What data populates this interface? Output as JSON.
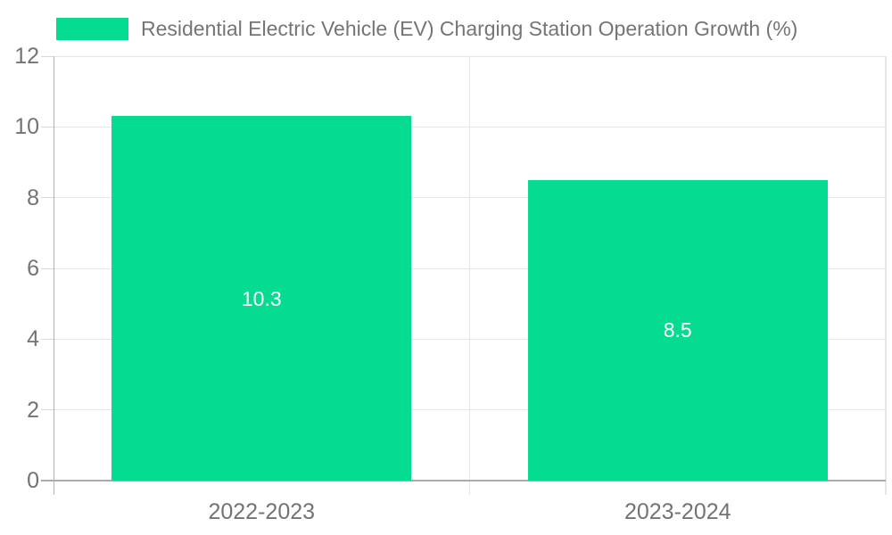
{
  "legend": {
    "label": "Residential Electric Vehicle (EV) Charging Station Operation Growth (%)"
  },
  "colors": {
    "bar": "#06DB92",
    "grid_line": "#E6E6E6",
    "y_axis_line": "#B3B3B3",
    "baseline": "#ABABAB",
    "tick_mark": "#D9D9D9",
    "label_text": "#737373",
    "title_text": "#757575",
    "value_label_text": "#FFFFFF",
    "background": "#FFFFFF"
  },
  "chart_data": {
    "type": "bar",
    "title": "Residential Electric Vehicle (EV) Charging Station Operation Growth (%)",
    "categories": [
      "2022-2023",
      "2023-2024"
    ],
    "values": [
      10.3,
      8.5
    ],
    "value_labels": [
      "10.3",
      "8.5"
    ],
    "series": [
      {
        "name": "Residential Electric Vehicle (EV) Charging Station Operation Growth (%)",
        "values": [
          10.3,
          8.5
        ]
      }
    ],
    "xlabel": "",
    "ylabel": "",
    "ylim": [
      0,
      12
    ],
    "yticks": [
      0,
      2,
      4,
      6,
      8,
      10,
      12
    ],
    "grid": true,
    "legend_position": "top-left"
  }
}
